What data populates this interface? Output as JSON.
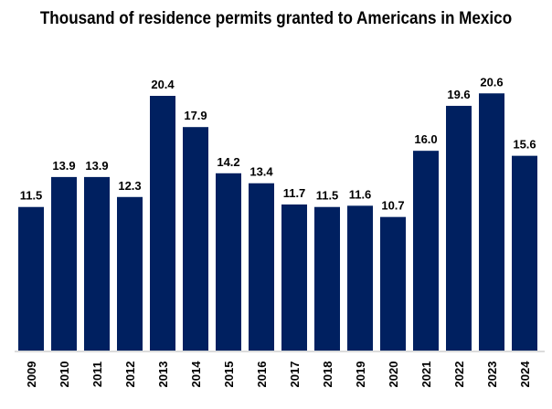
{
  "chart_data": {
    "type": "bar",
    "title": "Thousand of residence permits granted to Americans in Mexico",
    "xlabel": "",
    "ylabel": "",
    "categories": [
      "2009",
      "2010",
      "2011",
      "2012",
      "2013",
      "2014",
      "2015",
      "2016",
      "2017",
      "2018",
      "2019",
      "2020",
      "2021",
      "2022",
      "2023",
      "2024"
    ],
    "values": [
      11.5,
      13.9,
      13.9,
      12.3,
      20.4,
      17.9,
      14.2,
      13.4,
      11.7,
      11.5,
      11.6,
      10.7,
      16.0,
      19.6,
      20.6,
      15.6
    ],
    "value_labels": [
      "11.5",
      "13.9",
      "13.9",
      "12.3",
      "20.4",
      "17.9",
      "14.2",
      "13.4",
      "11.7",
      "11.5",
      "11.6",
      "10.7",
      "16.0",
      "19.6",
      "20.6",
      "15.6"
    ],
    "ylim": [
      0,
      20.6
    ],
    "grid": false,
    "bar_color": "#002060",
    "axis_color": "#d0d0d0"
  }
}
